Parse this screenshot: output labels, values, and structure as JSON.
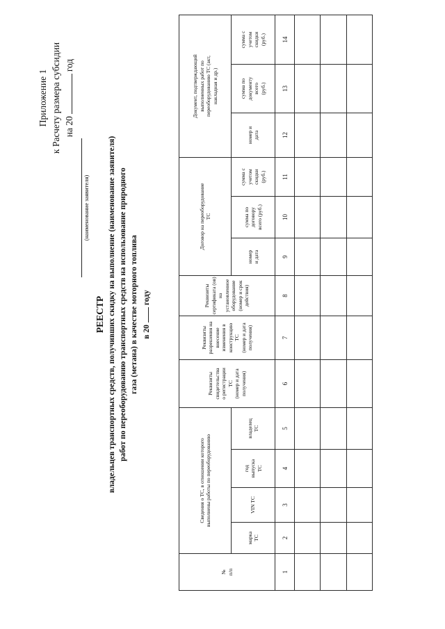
{
  "appendix": {
    "line1": "Приложение 1",
    "line2": "к Расчету размера субсидии",
    "year_prefix": "на 20",
    "year_suffix": "год"
  },
  "applicant": {
    "caption": "(наименование заявителя)"
  },
  "title": {
    "heading": "РЕЕСТР",
    "line2": "владельцев транспортных средств, получивших скидку на выполнение (наименование заявителя)",
    "line3": "работ по переоборудованию транспортных средств на использование природного",
    "line4": "газа (метана) в качестве моторного топлива",
    "year_prefix": "в 20",
    "year_suffix": "году"
  },
  "table": {
    "groups": {
      "num": "№\nп/п",
      "vehicle": "Сведения о ТС, в отношении которого\nвыполнены работы по переоборудованию",
      "reg_cert": "Реквизиты\nсвидетельства\nо регистрации\nТС\n(номер и дата\nполучения)",
      "permit": "Реквизиты\nразрешения на\nвнесение\nизменения в\nконструкцию\nТС\n(номер и дата\nполучения)",
      "equip_cert": "Реквизиты\nсертификата (ов)\nна установленное\nоборудование\n(номер и срок\nдействия)",
      "contract": "Договор на переоборудование\nТС",
      "work_doc": "Документ, подтверждающий\nвыполненных работ по\nпереоборудованию ТС (акт,\nнакладная и др.)"
    },
    "subs": {
      "brand": "марка\nТС",
      "vin": "VIN ТС",
      "year": "год\nвыпуска\nТС",
      "owner": "владелец\nТС",
      "contract_num": "номер\nи дата",
      "contract_total": "сумма по\nдоговору\nвсего (руб.)",
      "contract_disc": "сумма с\nучетом\nскидки\n(руб.)",
      "doc_num": "номер и\nдата",
      "doc_total": "сумма по\nдокументу\nвсего\n(руб.)",
      "doc_disc": "сумма с\nучетом\nскидки\n(руб.)"
    },
    "col_numbers": [
      "1",
      "2",
      "3",
      "4",
      "5",
      "6",
      "7",
      "8",
      "9",
      "10",
      "11",
      "12",
      "13",
      "14"
    ]
  }
}
